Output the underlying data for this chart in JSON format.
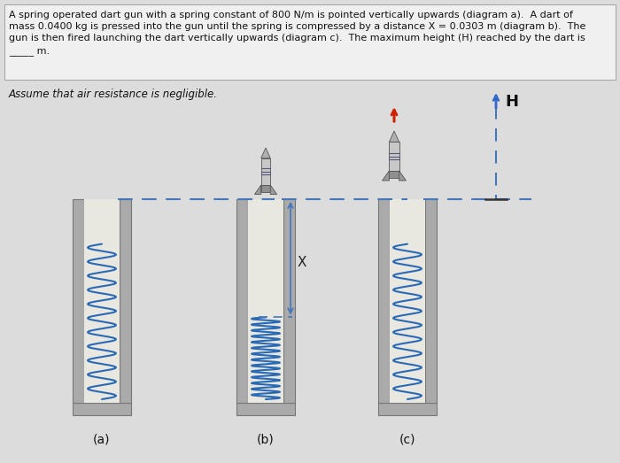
{
  "bg_color": "#dcdcdc",
  "text_color": "#111111",
  "spring_color": "#2a6ab5",
  "wall_color": "#aaaaaa",
  "wall_inner": "#e8e8e8",
  "dashed_color": "#4477bb",
  "arrow_color": "#cc2200",
  "H_arrow_color": "#3366cc",
  "title_text": "A spring operated dart gun with a spring constant of 800 N/m is pointed vertically upwards (diagram a).  A dart of\nmass 0.0400 kg is pressed into the gun until the spring is compressed by a distance X = 0.0303 m (diagram b).  The\ngun is then fired launching the dart vertically upwards (diagram c).  The maximum height (H) reached by the dart is\n_____ m.",
  "subtitle_text": "Assume that air resistance is negligible.",
  "label_a": "(a)",
  "label_b": "(b)",
  "label_c": "(c)",
  "label_H": "H",
  "label_X": "X",
  "title_fontsize": 8.0,
  "subtitle_fontsize": 8.5
}
